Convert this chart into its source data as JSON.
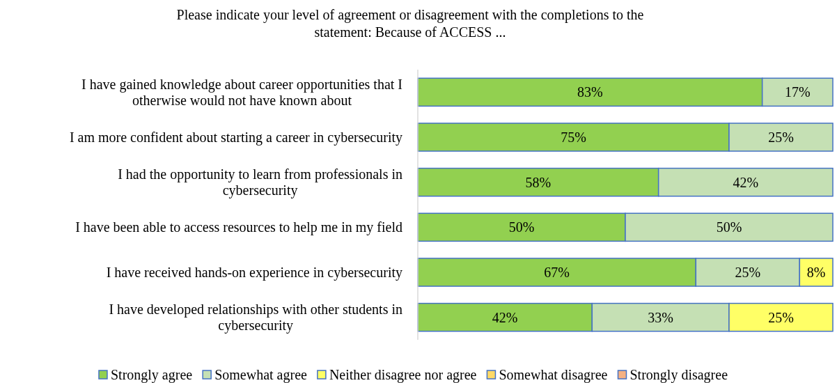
{
  "chart_data": {
    "type": "bar",
    "orientation": "horizontal",
    "stacked": true,
    "title": "Please indicate your level of agreement or disagreement with the completions to the statement:  Because of ACCESS ...",
    "categories": [
      "I have gained knowledge about career opportunities that I otherwise would not have known about",
      "I am more confident about starting a career in cybersecurity",
      "I had the opportunity to learn from professionals in cybersecurity",
      "I have been able to access resources to help me in my field",
      "I have received hands-on experience in cybersecurity",
      "I have developed relationships with other students in cybersecurity"
    ],
    "series": [
      {
        "name": "Strongly agree",
        "color": "#92d050",
        "values": [
          83,
          75,
          58,
          50,
          67,
          42
        ],
        "value_labels": [
          "83%",
          "75%",
          "58%",
          "50%",
          "67%",
          "42%"
        ]
      },
      {
        "name": "Somewhat agree",
        "color": "#c5e0b4",
        "values": [
          17,
          25,
          42,
          50,
          25,
          33
        ],
        "value_labels": [
          "17%",
          "25%",
          "42%",
          "50%",
          "25%",
          "33%"
        ]
      },
      {
        "name": "Neither disagree nor agree",
        "color": "#ffff66",
        "values": [
          null,
          null,
          null,
          null,
          8,
          25
        ],
        "value_labels": [
          null,
          null,
          null,
          null,
          "8%",
          "25%"
        ]
      },
      {
        "name": "Somewhat disagree",
        "color": "#ffd966",
        "values": [
          null,
          null,
          null,
          null,
          null,
          null
        ]
      },
      {
        "name": "Strongly disagree",
        "color": "#f4b183",
        "values": [
          null,
          null,
          null,
          null,
          null,
          null
        ]
      }
    ],
    "legend": "bottom"
  }
}
